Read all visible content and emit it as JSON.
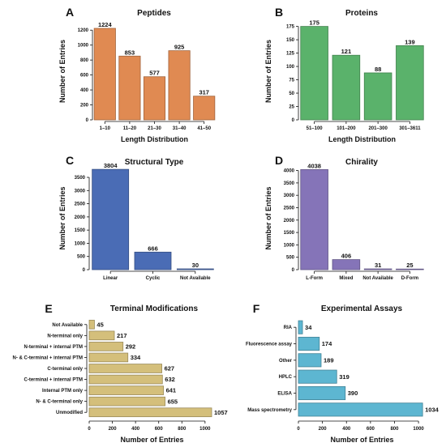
{
  "chart_data": [
    {
      "id": "A",
      "panel_label": "A",
      "type": "bar",
      "orientation": "vertical",
      "title": "Peptides",
      "xlabel": "Length Distribution",
      "ylabel": "Number of Entries",
      "categories": [
        "1–10",
        "11–20",
        "21–30",
        "31–40",
        "41–50"
      ],
      "values": [
        1224,
        853,
        577,
        925,
        317
      ],
      "ylim": [
        0,
        1300
      ],
      "yticks": [
        0,
        200,
        400,
        600,
        800,
        1000,
        1200
      ],
      "color": "#E08A52",
      "grid": false,
      "legend": "none"
    },
    {
      "id": "B",
      "panel_label": "B",
      "type": "bar",
      "orientation": "vertical",
      "title": "Proteins",
      "xlabel": "Length Distribution",
      "ylabel": "Number of Entries",
      "categories": [
        "51–100",
        "101–200",
        "201–300",
        "301–3611"
      ],
      "values": [
        175,
        121,
        88,
        139
      ],
      "ylim": [
        0,
        182
      ],
      "yticks": [
        0,
        25,
        50,
        75,
        100,
        125,
        150,
        175
      ],
      "color": "#5AB26B",
      "grid": false,
      "legend": "none"
    },
    {
      "id": "C",
      "panel_label": "C",
      "type": "bar",
      "orientation": "vertical",
      "title": "Structural Type",
      "xlabel": "",
      "ylabel": "Number of Entries",
      "categories": [
        "Linear",
        "Cyclic",
        "Not Available"
      ],
      "values": [
        3804,
        666,
        30
      ],
      "ylim": [
        0,
        3900
      ],
      "yticks": [
        0,
        500,
        1000,
        1500,
        2000,
        2500,
        3000,
        3500
      ],
      "color": "#4A6CB5",
      "grid": false,
      "legend": "none"
    },
    {
      "id": "D",
      "panel_label": "D",
      "type": "bar",
      "orientation": "vertical",
      "title": "Chirality",
      "xlabel": "",
      "ylabel": "Number of Entries",
      "categories": [
        "L-Form",
        "Mixed",
        "Not Available",
        "D-Form"
      ],
      "values": [
        4038,
        406,
        31,
        25
      ],
      "ylim": [
        0,
        4150
      ],
      "yticks": [
        0,
        500,
        1000,
        1500,
        2000,
        2500,
        3000,
        3500,
        4000
      ],
      "color": "#8574B8",
      "grid": false,
      "legend": "none"
    },
    {
      "id": "E",
      "panel_label": "E",
      "type": "bar",
      "orientation": "horizontal",
      "title": "Terminal Modifications",
      "xlabel": "Number of Entries",
      "ylabel": "",
      "categories": [
        "Not Available",
        "N-terminal only",
        "N-terminal + internal PTM",
        "N- & C-terminal + internal PTM",
        "C-terminal only",
        "C-terminal + internal PTM",
        "Internal PTM only",
        "N- & C-terminal only",
        "Unmodified"
      ],
      "values": [
        45,
        217,
        292,
        334,
        627,
        632,
        641,
        655,
        1057
      ],
      "xlim": [
        0,
        1085
      ],
      "xticks": [
        0,
        200,
        400,
        600,
        800,
        1000
      ],
      "color": "#D4BF7B",
      "grid": false,
      "legend": "none"
    },
    {
      "id": "F",
      "panel_label": "F",
      "type": "bar",
      "orientation": "horizontal",
      "title": "Experimental Assays",
      "xlabel": "Number of Entries",
      "ylabel": "",
      "categories": [
        "RIA",
        "Fluorescence assay",
        "Other",
        "HPLC",
        "ELISA",
        "Mass spectrometry"
      ],
      "values": [
        34,
        174,
        189,
        319,
        390,
        1034
      ],
      "xlim": [
        0,
        1060
      ],
      "xticks": [
        0,
        200,
        400,
        600,
        800,
        1000
      ],
      "color": "#5DB6D1",
      "grid": false,
      "legend": "none"
    }
  ]
}
